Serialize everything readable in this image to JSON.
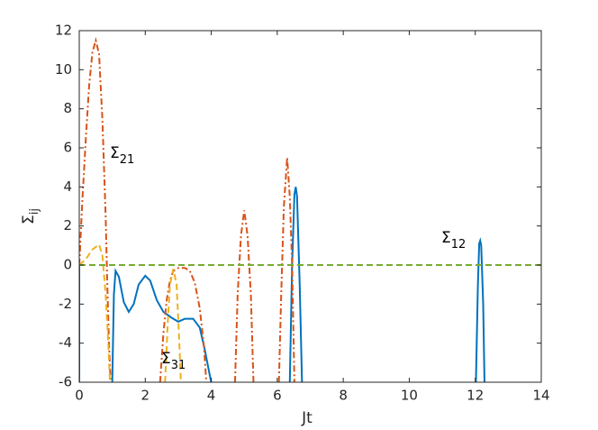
{
  "chart_data": {
    "type": "line",
    "xlabel": "Jt",
    "ylabel": {
      "text": "Σ",
      "sub": "ij"
    },
    "xlim": [
      0,
      14
    ],
    "ylim": [
      -6,
      12
    ],
    "xticks": [
      0,
      2,
      4,
      6,
      8,
      10,
      12,
      14
    ],
    "yticks": [
      -6,
      -4,
      -2,
      0,
      2,
      4,
      6,
      8,
      10,
      12
    ],
    "series": [
      {
        "color": "#0072bd",
        "style": "solid",
        "x": [
          0,
          0,
          null,
          1.0,
          1.05,
          1.1,
          1.2,
          1.35,
          1.5,
          1.65,
          1.8,
          2.0,
          2.15,
          2.35,
          2.55,
          2.8,
          3.0,
          3.2,
          3.45,
          3.65,
          3.8,
          3.95,
          4.0,
          null,
          6.38,
          6.45,
          6.52,
          6.56,
          6.6,
          6.68,
          6.75,
          null,
          12.02,
          12.08,
          12.12,
          12.15,
          12.18,
          12.24,
          12.28
        ],
        "values": [
          -6,
          0,
          null,
          -6,
          -1.5,
          -0.3,
          -0.6,
          -1.9,
          -2.4,
          -2.0,
          -1.0,
          -0.55,
          -0.8,
          -1.8,
          -2.4,
          -2.7,
          -2.9,
          -2.75,
          -2.75,
          -3.2,
          -4.3,
          -5.6,
          -6,
          null,
          -6,
          0,
          3.6,
          4.0,
          3.5,
          -1,
          -6,
          null,
          -6,
          -1,
          1.1,
          1.25,
          1.0,
          -2,
          -6
        ]
      },
      {
        "color": "#d95319",
        "style": "dashdot",
        "x": [
          0,
          0.1,
          0.2,
          0.3,
          0.4,
          0.5,
          0.6,
          0.7,
          0.8,
          0.85,
          0.9,
          0.95,
          null,
          2.45,
          2.55,
          2.65,
          2.75,
          2.85,
          3.0,
          3.2,
          3.35,
          3.5,
          3.65,
          3.78,
          3.85,
          null,
          4.72,
          4.8,
          4.9,
          5.0,
          5.1,
          5.2,
          5.28,
          null,
          6.05,
          6.12,
          6.2,
          6.3,
          6.38,
          6.45,
          6.52
        ],
        "values": [
          0,
          3.5,
          6.5,
          9.2,
          10.9,
          11.5,
          10.8,
          7.5,
          2.5,
          -1,
          -4,
          -6,
          null,
          -6,
          -3.5,
          -1.8,
          -0.8,
          -0.3,
          -0.15,
          -0.15,
          -0.3,
          -0.9,
          -2.2,
          -4.2,
          -6,
          null,
          -6,
          -1.5,
          1.5,
          2.8,
          1.5,
          -1.5,
          -6,
          null,
          -6,
          -1.5,
          3.0,
          5.5,
          3.5,
          0,
          -6
        ]
      },
      {
        "color": "#edb120",
        "style": "dashed",
        "x": [
          0,
          0.2,
          0.4,
          0.6,
          0.7,
          0.8,
          0.88,
          0.93,
          null,
          2.6,
          2.68,
          2.75,
          2.85,
          2.95,
          3.02,
          3.08
        ],
        "values": [
          0,
          0.3,
          0.8,
          1.05,
          0.5,
          -1.5,
          -4,
          -6,
          null,
          -6,
          -3,
          -1,
          -0.2,
          -1,
          -3.5,
          -6
        ]
      },
      {
        "color": "#77ac30",
        "style": "dashed",
        "x": [
          0,
          14
        ],
        "values": [
          0,
          0
        ]
      }
    ],
    "annotations": [
      {
        "text": "Σ",
        "sub": "21"
      },
      {
        "text": "Σ",
        "sub": "31"
      },
      {
        "text": "Σ",
        "sub": "12"
      }
    ]
  }
}
